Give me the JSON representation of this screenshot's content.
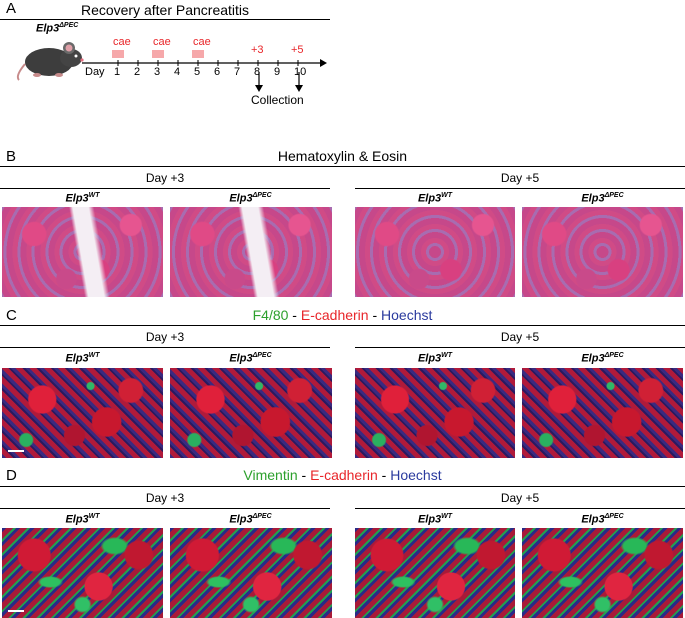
{
  "panel_a": {
    "letter": "A",
    "title": "Recovery after Pancreatitis",
    "genotype_main": "Elp3",
    "genotype_sup": "ΔPEC",
    "day_label": "Day",
    "days": [
      "1",
      "2",
      "3",
      "4",
      "5",
      "6",
      "7",
      "8",
      "9",
      "10"
    ],
    "cae_label": "cae",
    "plus3": "+3",
    "plus5": "+5",
    "collection": "Collection",
    "red_color": "#e8262a"
  },
  "panel_b": {
    "letter": "B",
    "title": "Hematoxylin & Eosin"
  },
  "panel_c": {
    "letter": "C",
    "title_green": "F4/80",
    "title_red": "E-cadherin",
    "title_blue": "Hoechst",
    "sep": " - "
  },
  "panel_d": {
    "letter": "D",
    "title_green": "Vimentin",
    "title_red": "E-cadherin",
    "title_blue": "Hoechst",
    "sep": " - "
  },
  "groups": {
    "day3": "Day +3",
    "day5": "Day +5"
  },
  "genotypes": {
    "base": "Elp3",
    "wt": "WT",
    "pec": "ΔPEC"
  },
  "colors": {
    "green": "#2ca02c",
    "red": "#e8262a",
    "blue": "#2a3a9e"
  }
}
